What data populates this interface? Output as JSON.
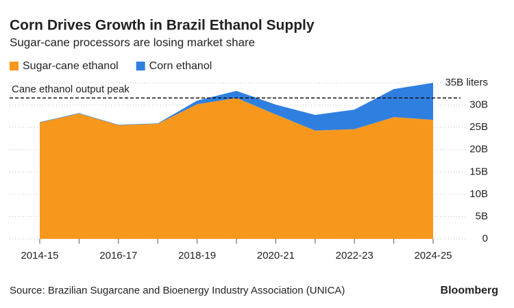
{
  "chart_data": {
    "type": "stacked-area",
    "title": "Corn Drives Growth in Brazil Ethanol Supply",
    "subtitle": "Sugar-cane processors are losing market share",
    "categories": [
      "2014-15",
      null,
      "2016-17",
      null,
      "2018-19",
      null,
      "2020-21",
      null,
      "2022-23",
      null,
      "2024-25"
    ],
    "series": [
      {
        "name": "Sugar-cane ethanol",
        "color": "#f7981d",
        "values": [
          26.1,
          28.1,
          25.5,
          25.8,
          30.2,
          31.6,
          27.9,
          24.3,
          24.6,
          27.3,
          26.7
        ]
      },
      {
        "name": "Corn ethanol",
        "color": "#2f7fe0",
        "values": [
          0.1,
          0.1,
          0.1,
          0.1,
          0.8,
          1.6,
          2.2,
          3.5,
          4.4,
          6.3,
          8.3
        ]
      }
    ],
    "ylim": [
      0,
      35
    ],
    "yticks": [
      0,
      {
        "value": 5,
        "label": "5B"
      },
      {
        "value": 10,
        "label": "10B"
      },
      {
        "value": 15,
        "label": "15B"
      },
      {
        "value": 20,
        "label": "20B"
      },
      {
        "value": 25,
        "label": "25B"
      },
      {
        "value": 30,
        "label": "30B"
      },
      {
        "value": 35,
        "label": "35B liters"
      }
    ],
    "grid": true,
    "annotation": {
      "text": "Cane ethanol output peak",
      "value": 31.6
    },
    "source": "Source: Brazilian Sugarcane and Bioenergy Industry Association (UNICA)",
    "brand": "Bloomberg"
  }
}
